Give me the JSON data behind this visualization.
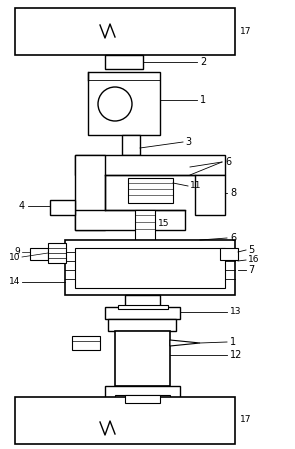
{
  "bg_color": "#ffffff",
  "line_color": "#000000",
  "lw": 1.0,
  "tlw": 0.6,
  "fig_width": 2.95,
  "fig_height": 4.49
}
